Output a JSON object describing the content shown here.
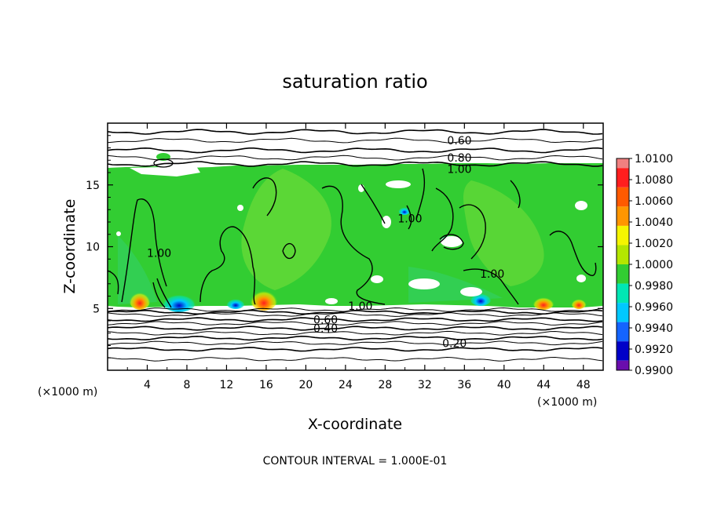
{
  "chart_data": {
    "type": "heatmap",
    "title": "saturation ratio",
    "xlabel": "X-coordinate",
    "ylabel": "Z-coordinate",
    "x_unit": "(×1000 m)",
    "z_unit": "(×1000 m)",
    "xlim": [
      0,
      50
    ],
    "zlim": [
      0,
      20
    ],
    "x_ticks": [
      4,
      8,
      12,
      16,
      20,
      24,
      28,
      32,
      36,
      40,
      44,
      48
    ],
    "z_ticks": [
      5,
      10,
      15
    ],
    "colorbar": {
      "levels": [
        1.01,
        1.008,
        1.006,
        1.004,
        1.002,
        1.0,
        0.998,
        0.996,
        0.994,
        0.992,
        0.99
      ],
      "labels": [
        "1.0100",
        "1.0080",
        "1.0060",
        "1.0040",
        "1.0020",
        "1.0000",
        "0.9980",
        "0.9960",
        "0.9940",
        "0.9920",
        "0.9900"
      ],
      "colors": [
        "#f08080",
        "#ff1e1e",
        "#ff5a00",
        "#ff9600",
        "#f5f500",
        "#b4e600",
        "#32cd32",
        "#00e6b4",
        "#00c8ff",
        "#1464ff",
        "#0000c8",
        "#6a0dad"
      ]
    },
    "contour_labels": [
      {
        "text": "0.60",
        "x": 35.5,
        "z": 18.6
      },
      {
        "text": "0.80",
        "x": 35.5,
        "z": 17.2
      },
      {
        "text": "1.00",
        "x": 35.5,
        "z": 16.3
      },
      {
        "text": "1.00",
        "x": 25.5,
        "z": 5.2
      },
      {
        "text": "0.60",
        "x": 22.0,
        "z": 4.1
      },
      {
        "text": "0.40",
        "x": 22.0,
        "z": 3.4
      },
      {
        "text": "0.20",
        "x": 35.0,
        "z": 2.2
      },
      {
        "text": "1.00",
        "x": 5.2,
        "z": 9.5
      },
      {
        "text": "1.00",
        "x": 30.5,
        "z": 12.3
      },
      {
        "text": "1.00",
        "x": 38.8,
        "z": 7.8
      }
    ],
    "horizontal_contours_z": [
      19.3,
      18.6,
      17.8,
      17.2,
      16.7,
      4.9,
      4.7,
      4.5,
      4.1,
      3.8,
      3.4,
      3.0,
      2.6,
      2.2,
      1.7,
      0.9
    ]
  },
  "footer": {
    "contour_interval": "CONTOUR INTERVAL = 1.000E-01"
  }
}
